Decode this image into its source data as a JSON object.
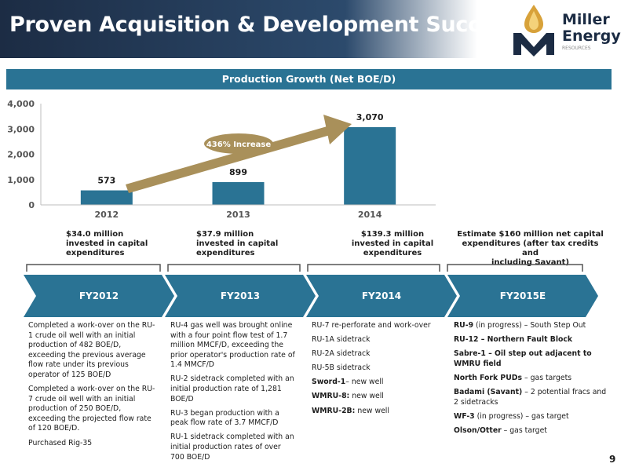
{
  "header": {
    "title": "Proven Acquisition & Development Success"
  },
  "logo": {
    "line1": "Miller",
    "line2": "Energy",
    "line3": "RESOURCES",
    "icon": "flame-drop-icon"
  },
  "chart_banner": "Production Growth (Net BOE/D)",
  "chart_data": {
    "type": "bar",
    "title": "Production Growth (Net BOE/D)",
    "categories": [
      "2012",
      "2013",
      "2014"
    ],
    "values": [
      573,
      899,
      3070
    ],
    "data_labels": [
      "573",
      "899",
      "3,070"
    ],
    "y_ticks": [
      "0",
      "1,000",
      "2,000",
      "3,000",
      "4,000"
    ],
    "ylim": [
      0,
      4000
    ],
    "grid": false,
    "bar_color": "#2a7394",
    "annotation": {
      "text": "436% Increase",
      "color": "#a9905a"
    }
  },
  "capex": [
    {
      "line1": "$34.0 million",
      "line2": "invested in capital",
      "line3": "expenditures"
    },
    {
      "line1": "$37.9 million",
      "line2": "invested in capital",
      "line3": "expenditures"
    },
    {
      "line1": "$139.3 million",
      "line2": "invested in capital",
      "line3": "expenditures"
    },
    {
      "line1": "Estimate $160 million net capital",
      "line2": "expenditures (after tax credits and",
      "line3": "including Savant)"
    }
  ],
  "timeline": [
    {
      "label": "FY2012"
    },
    {
      "label": "FY2013"
    },
    {
      "label": "FY2014"
    },
    {
      "label": "FY2015E"
    }
  ],
  "fy2012_items": [
    "Completed a work-over on the RU-1 crude oil well with an initial production of 482 BOE/D, exceeding the previous average flow rate under its previous operator of 125 BOE/D",
    "Completed a work-over on the RU-7 crude oil well with an initial production of 250 BOE/D, exceeding the projected flow rate of 120 BOE/D.",
    "Purchased Rig-35"
  ],
  "fy2013_items": [
    "RU-4 gas well was brought online with a four point flow test of 1.7 million MMCF/D, exceeding the prior operator's production rate of 1.4 MMCF/D",
    "RU-2 sidetrack completed with an initial production rate of 1,281 BOE/D",
    "RU-3 began production with a peak flow rate of 3.7 MMCF/D",
    "RU-1 sidetrack completed with an initial production rates of over 700 BOE/D"
  ],
  "fy2014_items": [
    {
      "bold": "",
      "text": "RU-7 re-perforate and work-over"
    },
    {
      "bold": "",
      "text": "RU-1A sidetrack"
    },
    {
      "bold": "",
      "text": "RU-2A sidetrack"
    },
    {
      "bold": "",
      "text": "RU-5B sidetrack"
    },
    {
      "bold": "Sword-1",
      "text": "– new well"
    },
    {
      "bold": "WMRU-8:",
      "text": " new well"
    },
    {
      "bold": "WMRU-2B:",
      "text": " new well"
    }
  ],
  "fy2015_items": [
    {
      "bold": "RU-9",
      "text": " (in progress) – South Step Out"
    },
    {
      "bold": "RU-12 – Northern Fault Block",
      "text": ""
    },
    {
      "bold": "Sabre-1 – Oil step out adjacent to WMRU field",
      "text": ""
    },
    {
      "bold": "North Fork PUDs",
      "text": " – gas targets"
    },
    {
      "bold": "Badami (Savant)",
      "text": " – 2 potential fracs and 2 sidetracks"
    },
    {
      "bold": "WF-3",
      "text": " (in progress) – gas target"
    },
    {
      "bold": "Olson/Otter",
      "text": " – gas target"
    }
  ],
  "page_number": "9"
}
